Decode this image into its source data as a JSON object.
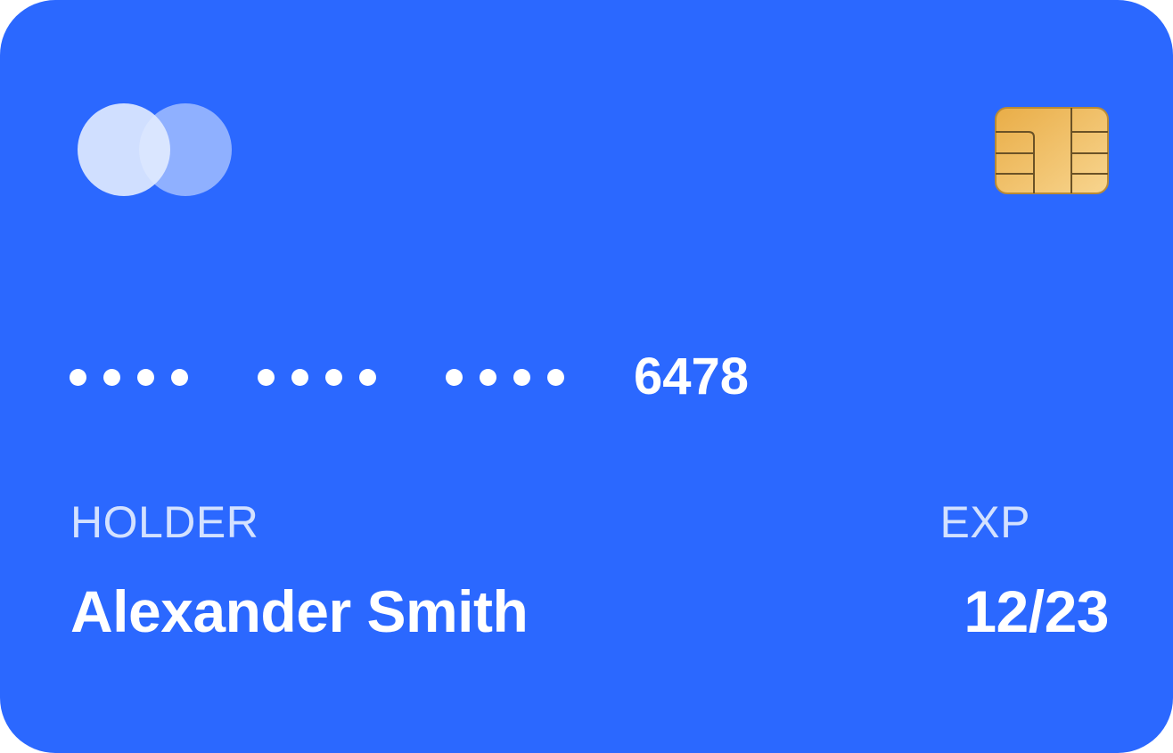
{
  "card": {
    "brand_icon": "overlapping-circles-logo",
    "chip_icon": "emv-chip-icon",
    "number": {
      "masked_groups": [
        4,
        4,
        4
      ],
      "last_digits": "6478"
    },
    "holder": {
      "label": "HOLDER",
      "name": "Alexander Smith"
    },
    "expiry": {
      "label": "EXP",
      "value": "12/23"
    },
    "colors": {
      "background": "#2b68ff",
      "text": "#ffffff",
      "chip_gold": "#f0bb5c"
    }
  }
}
